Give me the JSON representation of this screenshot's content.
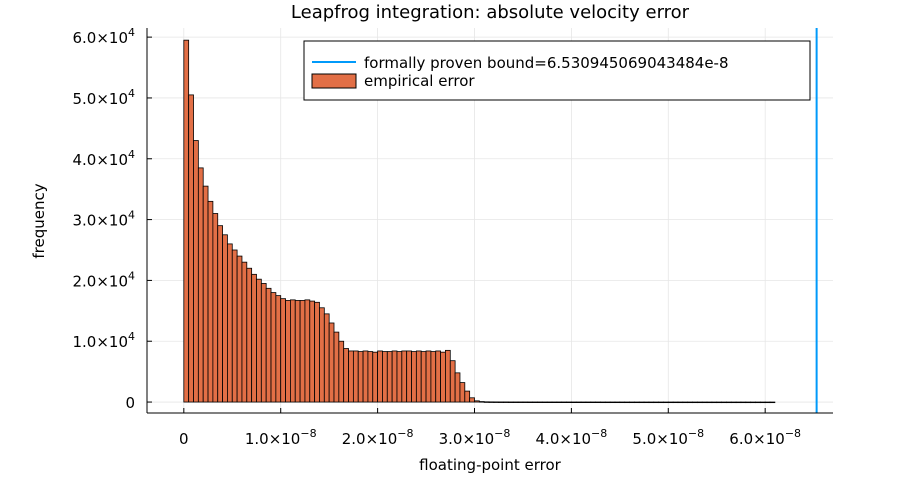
{
  "chart_data": {
    "type": "bar",
    "title": "Leapfrog integration: absolute velocity error",
    "xlabel": "floating-point error",
    "ylabel": "frequency",
    "xlim": [
      -3.8e-09,
      6.7e-08
    ],
    "ylim": [
      -1800,
      61500
    ],
    "bin_width": 5e-10,
    "bin_start": 0,
    "x_ticks": [
      {
        "value": 0,
        "mantissa": "0",
        "exponent": ""
      },
      {
        "value": 1e-08,
        "mantissa": "1.0×10",
        "exponent": "−8"
      },
      {
        "value": 2e-08,
        "mantissa": "2.0×10",
        "exponent": "−8"
      },
      {
        "value": 3e-08,
        "mantissa": "3.0×10",
        "exponent": "−8"
      },
      {
        "value": 4e-08,
        "mantissa": "4.0×10",
        "exponent": "−8"
      },
      {
        "value": 5e-08,
        "mantissa": "5.0×10",
        "exponent": "−8"
      },
      {
        "value": 6e-08,
        "mantissa": "6.0×10",
        "exponent": "−8"
      }
    ],
    "y_ticks": [
      {
        "value": 0,
        "mantissa": "0",
        "exponent": ""
      },
      {
        "value": 10000,
        "mantissa": "1.0×10",
        "exponent": "4"
      },
      {
        "value": 20000,
        "mantissa": "2.0×10",
        "exponent": "4"
      },
      {
        "value": 30000,
        "mantissa": "3.0×10",
        "exponent": "4"
      },
      {
        "value": 40000,
        "mantissa": "4.0×10",
        "exponent": "4"
      },
      {
        "value": 50000,
        "mantissa": "5.0×10",
        "exponent": "4"
      },
      {
        "value": 60000,
        "mantissa": "6.0×10",
        "exponent": "4"
      }
    ],
    "grid": true,
    "legend_position": "top-right",
    "series": [
      {
        "name": "formally proven bound=6.530945069043484e-8",
        "type": "vline",
        "x": 6.530945069043484e-08,
        "color": "#009AFA"
      },
      {
        "name": "empirical error",
        "type": "histogram",
        "color": "#E26F46",
        "values": [
          59500,
          50500,
          43000,
          38500,
          35500,
          33000,
          31000,
          29000,
          27500,
          26000,
          25000,
          24000,
          23000,
          22000,
          21000,
          20200,
          19500,
          18700,
          18000,
          17500,
          17000,
          16700,
          16800,
          16700,
          16700,
          16800,
          16600,
          16400,
          15500,
          14500,
          13000,
          11500,
          10000,
          8800,
          8400,
          8400,
          8300,
          8400,
          8300,
          8200,
          8400,
          8300,
          8300,
          8400,
          8300,
          8400,
          8400,
          8300,
          8400,
          8300,
          8400,
          8300,
          8400,
          8200,
          8500,
          6800,
          4800,
          3200,
          1800,
          700,
          200,
          80,
          40,
          30,
          25,
          20,
          20,
          15,
          15,
          15,
          15,
          12,
          12,
          12,
          10,
          10,
          10,
          10,
          10,
          10,
          8,
          8,
          8,
          8,
          8,
          8,
          6,
          6,
          6,
          6,
          6,
          5,
          5,
          5,
          5,
          5,
          4,
          4,
          4,
          4,
          4,
          4,
          3,
          3,
          3,
          3,
          3,
          3,
          2,
          2,
          2,
          2,
          2,
          2,
          2,
          2,
          1,
          1,
          1,
          1,
          1,
          1
        ]
      }
    ]
  }
}
